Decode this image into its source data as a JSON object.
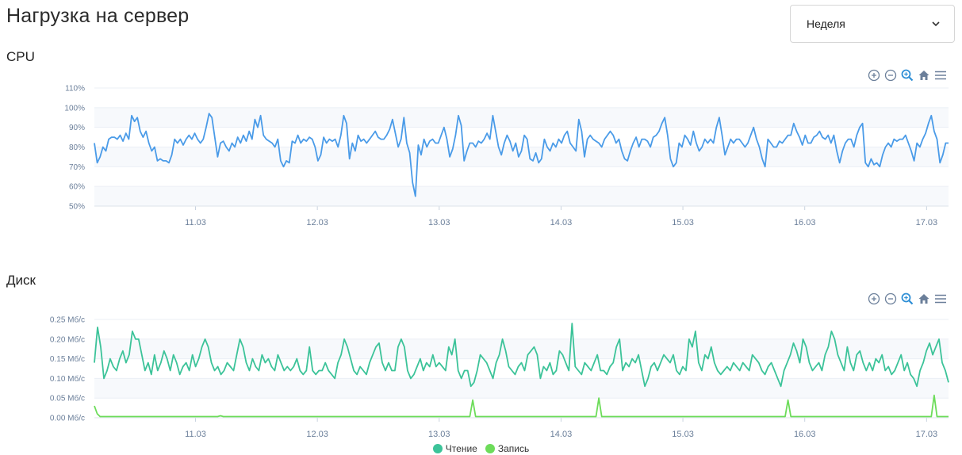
{
  "page": {
    "title": "Нагрузка на сервер"
  },
  "period_select": {
    "value": "Неделя"
  },
  "sections": {
    "cpu_title": "CPU",
    "disk_title": "Диск"
  },
  "colors": {
    "cpu_line": "#4a9be8",
    "read_line": "#3cc399",
    "write_line": "#6ddc5a",
    "grid": "#ebeff5",
    "band": "#f7f9fc",
    "tick": "#6b7f9a",
    "icon": "#6b7f9a",
    "icon_active": "#2f8fd6"
  },
  "toolbar_icons": [
    "zoom-in-icon",
    "zoom-out-icon",
    "selection-zoom-icon",
    "home-icon",
    "menu-icon"
  ],
  "chart_data": [
    {
      "type": "line",
      "name": "cpu",
      "title": "CPU",
      "y_ticks": [
        "110%",
        "100%",
        "90%",
        "80%",
        "70%",
        "60%",
        "50%"
      ],
      "ylim": [
        50,
        110
      ],
      "x_ticks": [
        "11.03",
        "12.03",
        "13.03",
        "14.03",
        "15.03",
        "16.03",
        "17.03"
      ],
      "x_range_days": [
        10.17,
        17.18
      ],
      "series": [
        {
          "values": [
            82,
            72,
            75,
            80,
            78,
            84,
            85,
            85,
            84,
            86,
            83,
            87,
            84,
            96,
            93,
            95,
            88,
            85,
            88,
            82,
            78,
            80,
            73,
            74,
            73,
            73,
            72,
            76,
            84,
            82,
            84,
            81,
            84,
            86,
            84,
            87,
            84,
            82,
            84,
            90,
            97,
            95,
            85,
            75,
            82,
            83,
            80,
            78,
            82,
            80,
            85,
            82,
            86,
            83,
            88,
            84,
            94,
            90,
            96,
            86,
            84,
            83,
            82,
            80,
            84,
            73,
            70,
            73,
            72,
            83,
            82,
            86,
            82,
            84,
            83,
            85,
            84,
            80,
            73,
            76,
            85,
            82,
            84,
            83,
            84,
            80,
            86,
            96,
            92,
            74,
            82,
            78,
            86,
            83,
            84,
            82,
            84,
            86,
            88,
            85,
            84,
            84,
            86,
            89,
            94,
            87,
            80,
            84,
            95,
            82,
            77,
            62,
            55,
            81,
            76,
            84,
            80,
            83,
            84,
            82,
            82,
            86,
            90,
            84,
            75,
            79,
            86,
            96,
            91,
            73,
            78,
            82,
            82,
            80,
            83,
            82,
            84,
            87,
            84,
            96,
            88,
            80,
            76,
            82,
            86,
            83,
            78,
            82,
            75,
            78,
            86,
            84,
            74,
            73,
            77,
            72,
            74,
            84,
            80,
            78,
            82,
            80,
            84,
            82,
            86,
            88,
            82,
            80,
            78,
            94,
            88,
            75,
            84,
            86,
            84,
            83,
            82,
            80,
            84,
            86,
            88,
            86,
            82,
            84,
            78,
            74,
            73,
            78,
            82,
            85,
            80,
            84,
            84,
            83,
            80,
            85,
            86,
            88,
            92,
            95,
            86,
            74,
            70,
            72,
            82,
            80,
            86,
            84,
            81,
            88,
            82,
            78,
            80,
            84,
            82,
            84,
            82,
            90,
            95,
            86,
            76,
            80,
            84,
            82,
            84,
            84,
            82,
            80,
            82,
            86,
            90,
            84,
            80,
            74,
            70,
            84,
            82,
            80,
            80,
            83,
            82,
            84,
            86,
            86,
            92,
            88,
            85,
            81,
            86,
            82,
            82,
            85,
            86,
            88,
            85,
            84,
            86,
            82,
            86,
            78,
            72,
            78,
            82,
            84,
            84,
            80,
            86,
            90,
            92,
            72,
            70,
            74,
            71,
            72,
            70,
            76,
            80,
            82,
            80,
            84,
            83,
            84,
            84,
            86,
            82,
            78,
            73,
            82,
            80,
            84,
            87,
            92,
            96,
            88,
            84,
            72,
            76,
            82,
            82
          ]
        }
      ]
    },
    {
      "type": "line",
      "name": "disk",
      "title": "Диск",
      "y_ticks": [
        "0.25 Мб/с",
        "0.20 Мб/с",
        "0.15 Мб/с",
        "0.10 Мб/с",
        "0.05 Мб/с",
        "0.00 Мб/с"
      ],
      "ylim": [
        0,
        0.25
      ],
      "x_ticks": [
        "11.03",
        "12.03",
        "13.03",
        "14.03",
        "15.03",
        "16.03",
        "17.03"
      ],
      "x_range_days": [
        10.17,
        17.18
      ],
      "legend": {
        "position": "bottom-center"
      },
      "series": [
        {
          "name": "Чтение",
          "values": [
            0.14,
            0.23,
            0.18,
            0.1,
            0.12,
            0.15,
            0.13,
            0.12,
            0.15,
            0.17,
            0.14,
            0.16,
            0.22,
            0.2,
            0.2,
            0.16,
            0.12,
            0.14,
            0.11,
            0.16,
            0.12,
            0.14,
            0.17,
            0.15,
            0.12,
            0.16,
            0.14,
            0.11,
            0.13,
            0.14,
            0.12,
            0.16,
            0.13,
            0.15,
            0.18,
            0.2,
            0.18,
            0.14,
            0.12,
            0.13,
            0.11,
            0.12,
            0.14,
            0.13,
            0.12,
            0.16,
            0.2,
            0.18,
            0.14,
            0.12,
            0.15,
            0.13,
            0.12,
            0.16,
            0.14,
            0.15,
            0.13,
            0.12,
            0.16,
            0.14,
            0.12,
            0.13,
            0.12,
            0.13,
            0.15,
            0.12,
            0.11,
            0.12,
            0.18,
            0.12,
            0.11,
            0.12,
            0.12,
            0.14,
            0.12,
            0.11,
            0.1,
            0.14,
            0.16,
            0.2,
            0.18,
            0.15,
            0.12,
            0.11,
            0.13,
            0.12,
            0.11,
            0.14,
            0.16,
            0.18,
            0.19,
            0.14,
            0.12,
            0.14,
            0.12,
            0.12,
            0.18,
            0.2,
            0.18,
            0.12,
            0.1,
            0.11,
            0.13,
            0.15,
            0.12,
            0.14,
            0.13,
            0.16,
            0.13,
            0.14,
            0.13,
            0.12,
            0.18,
            0.16,
            0.2,
            0.12,
            0.1,
            0.12,
            0.12,
            0.08,
            0.09,
            0.12,
            0.16,
            0.15,
            0.14,
            0.12,
            0.1,
            0.14,
            0.16,
            0.2,
            0.17,
            0.13,
            0.12,
            0.11,
            0.13,
            0.14,
            0.12,
            0.16,
            0.17,
            0.18,
            0.16,
            0.1,
            0.13,
            0.12,
            0.14,
            0.11,
            0.12,
            0.17,
            0.16,
            0.14,
            0.12,
            0.24,
            0.13,
            0.12,
            0.11,
            0.14,
            0.13,
            0.12,
            0.14,
            0.16,
            0.12,
            0.12,
            0.11,
            0.13,
            0.14,
            0.18,
            0.2,
            0.12,
            0.14,
            0.13,
            0.15,
            0.14,
            0.16,
            0.12,
            0.08,
            0.1,
            0.13,
            0.14,
            0.12,
            0.14,
            0.16,
            0.15,
            0.14,
            0.16,
            0.12,
            0.11,
            0.13,
            0.12,
            0.2,
            0.18,
            0.22,
            0.14,
            0.12,
            0.16,
            0.15,
            0.18,
            0.14,
            0.12,
            0.11,
            0.12,
            0.13,
            0.12,
            0.14,
            0.13,
            0.12,
            0.14,
            0.13,
            0.12,
            0.16,
            0.15,
            0.14,
            0.12,
            0.11,
            0.13,
            0.14,
            0.12,
            0.1,
            0.08,
            0.12,
            0.14,
            0.16,
            0.19,
            0.17,
            0.14,
            0.2,
            0.18,
            0.14,
            0.12,
            0.13,
            0.14,
            0.12,
            0.16,
            0.18,
            0.22,
            0.2,
            0.16,
            0.14,
            0.12,
            0.18,
            0.14,
            0.12,
            0.16,
            0.17,
            0.14,
            0.12,
            0.14,
            0.12,
            0.15,
            0.14,
            0.16,
            0.12,
            0.13,
            0.11,
            0.12,
            0.14,
            0.16,
            0.12,
            0.14,
            0.11,
            0.1,
            0.08,
            0.12,
            0.14,
            0.17,
            0.19,
            0.16,
            0.18,
            0.2,
            0.14,
            0.12,
            0.09
          ]
        },
        {
          "name": "Запись",
          "values": [
            0.03,
            0.01,
            0.003,
            0.003,
            0.003,
            0.003,
            0.003,
            0.003,
            0.003,
            0.003,
            0.003,
            0.003,
            0.003,
            0.003,
            0.003,
            0.003,
            0.003,
            0.003,
            0.003,
            0.003,
            0.003,
            0.003,
            0.003,
            0.003,
            0.003,
            0.003,
            0.003,
            0.003,
            0.003,
            0.003,
            0.003,
            0.003,
            0.003,
            0.003,
            0.003,
            0.003,
            0.003,
            0.003,
            0.003,
            0.003,
            0.003,
            0.003,
            0.003,
            0.003,
            0.005,
            0.003,
            0.003,
            0.003,
            0.003,
            0.003,
            0.003,
            0.003,
            0.003,
            0.003,
            0.003,
            0.003,
            0.003,
            0.003,
            0.003,
            0.003,
            0.003,
            0.003,
            0.003,
            0.003,
            0.003,
            0.003,
            0.003,
            0.003,
            0.003,
            0.003,
            0.003,
            0.003,
            0.003,
            0.003,
            0.003,
            0.003,
            0.003,
            0.003,
            0.003,
            0.003,
            0.003,
            0.003,
            0.003,
            0.003,
            0.003,
            0.003,
            0.003,
            0.003,
            0.003,
            0.003,
            0.003,
            0.003,
            0.003,
            0.003,
            0.003,
            0.003,
            0.003,
            0.003,
            0.003,
            0.003,
            0.003,
            0.003,
            0.003,
            0.003,
            0.003,
            0.003,
            0.003,
            0.003,
            0.003,
            0.003,
            0.003,
            0.003,
            0.003,
            0.003,
            0.003,
            0.003,
            0.003,
            0.003,
            0.003,
            0.003,
            0.003,
            0.003,
            0.003,
            0.003,
            0.003,
            0.003,
            0.003,
            0.003,
            0.003,
            0.003,
            0.003,
            0.003,
            0.003,
            0.003,
            0.003,
            0.003,
            0.003,
            0.003,
            0.003,
            0.003,
            0.003,
            0.003,
            0.003,
            0.003,
            0.003,
            0.003,
            0.003,
            0.003,
            0.003,
            0.003,
            0.003,
            0.003,
            0.003,
            0.003,
            0.003,
            0.003,
            0.003,
            0.003,
            0.003,
            0.003,
            0.003,
            0.003,
            0.003,
            0.003,
            0.003,
            0.003,
            0.003,
            0.003,
            0.003,
            0.003,
            0.003,
            0.003,
            0.003,
            0.003,
            0.003,
            0.003,
            0.003,
            0.003,
            0.003,
            0.003,
            0.003,
            0.003,
            0.003,
            0.003,
            0.003,
            0.003,
            0.003,
            0.003,
            0.003,
            0.003,
            0.003,
            0.003,
            0.003,
            0.003,
            0.003,
            0.003,
            0.003,
            0.003,
            0.003,
            0.003,
            0.003,
            0.003,
            0.003,
            0.003,
            0.003,
            0.003,
            0.003,
            0.003,
            0.003,
            0.003,
            0.003,
            0.003,
            0.003,
            0.003,
            0.003,
            0.003,
            0.003,
            0.003,
            0.003,
            0.003,
            0.003,
            0.003,
            0.003,
            0.003,
            0.003,
            0.003,
            0.003,
            0.003,
            0.003,
            0.003,
            0.003,
            0.003,
            0.003,
            0.003,
            0.003,
            0.003,
            0.003,
            0.003,
            0.003,
            0.003,
            0.003,
            0.003,
            0.003,
            0.003,
            0.003,
            0.003,
            0.003,
            0.003,
            0.003,
            0.003,
            0.003,
            0.003,
            0.003,
            0.003,
            0.003,
            0.003,
            0.003,
            0.003,
            0.003,
            0.003,
            0.003,
            0.003,
            0.003,
            0.003,
            0.003,
            0.003,
            0.003,
            0.003,
            0.003,
            0.003,
            0.003,
            0.003,
            0.003,
            0.003,
            0.003,
            0.003,
            0.003,
            0.003,
            0.003,
            0.003,
            0.003,
            0.003,
            0.003,
            0.003,
            0.003,
            0.003,
            0.003,
            0.003,
            0.003,
            0.003,
            0.003,
            0.003,
            0.003,
            0.003,
            0.003,
            0.003,
            0.003,
            0.003,
            0.003
          ],
          "spikes": [
            {
              "x_day": 10.18,
              "value": 0.03
            },
            {
              "x_day": 13.28,
              "value": 0.045
            },
            {
              "x_day": 14.32,
              "value": 0.05
            },
            {
              "x_day": 15.86,
              "value": 0.045
            },
            {
              "x_day": 17.07,
              "value": 0.057
            }
          ]
        }
      ]
    }
  ],
  "legend": {
    "items": [
      "Чтение",
      "Запись"
    ]
  }
}
